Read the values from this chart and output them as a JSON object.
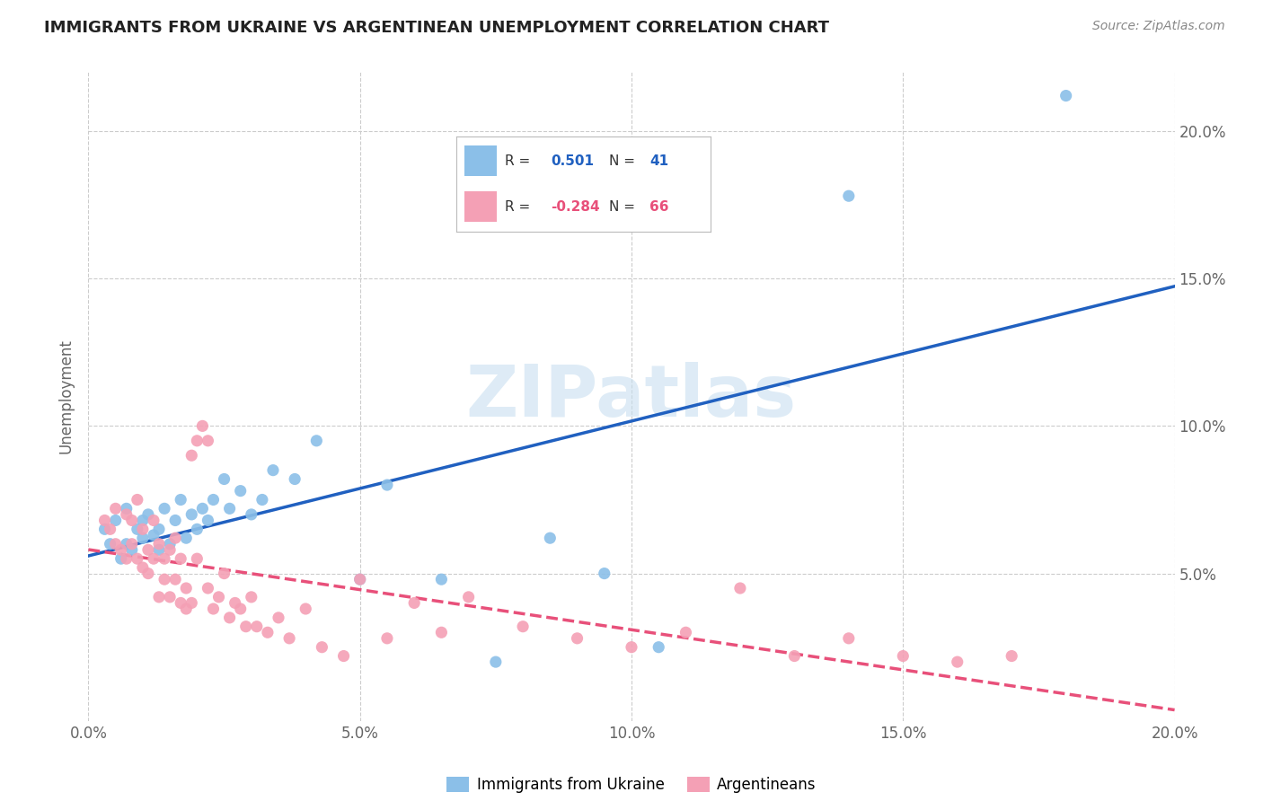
{
  "title": "IMMIGRANTS FROM UKRAINE VS ARGENTINEAN UNEMPLOYMENT CORRELATION CHART",
  "source": "Source: ZipAtlas.com",
  "ylabel": "Unemployment",
  "xlim": [
    0.0,
    0.2
  ],
  "ylim": [
    0.0,
    0.22
  ],
  "yticks": [
    0.05,
    0.1,
    0.15,
    0.2
  ],
  "xticks": [
    0.0,
    0.05,
    0.1,
    0.15,
    0.2
  ],
  "xtick_labels": [
    "0.0%",
    "5.0%",
    "10.0%",
    "15.0%",
    "20.0%"
  ],
  "ytick_labels_right": [
    "5.0%",
    "10.0%",
    "15.0%",
    "20.0%"
  ],
  "ukraine_color": "#8bbfe8",
  "argentina_color": "#f4a0b5",
  "ukraine_line_color": "#2060c0",
  "argentina_line_color": "#e8507a",
  "watermark": "ZIPatlas",
  "ukraine_scatter_x": [
    0.003,
    0.004,
    0.005,
    0.006,
    0.007,
    0.007,
    0.008,
    0.009,
    0.01,
    0.01,
    0.011,
    0.012,
    0.013,
    0.013,
    0.014,
    0.015,
    0.016,
    0.017,
    0.018,
    0.019,
    0.02,
    0.021,
    0.022,
    0.023,
    0.025,
    0.026,
    0.028,
    0.03,
    0.032,
    0.034,
    0.038,
    0.042,
    0.05,
    0.055,
    0.065,
    0.075,
    0.085,
    0.095,
    0.105,
    0.14,
    0.18
  ],
  "ukraine_scatter_y": [
    0.065,
    0.06,
    0.068,
    0.055,
    0.06,
    0.072,
    0.058,
    0.065,
    0.062,
    0.068,
    0.07,
    0.063,
    0.065,
    0.058,
    0.072,
    0.06,
    0.068,
    0.075,
    0.062,
    0.07,
    0.065,
    0.072,
    0.068,
    0.075,
    0.082,
    0.072,
    0.078,
    0.07,
    0.075,
    0.085,
    0.082,
    0.095,
    0.048,
    0.08,
    0.048,
    0.02,
    0.062,
    0.05,
    0.025,
    0.178,
    0.212
  ],
  "argentina_scatter_x": [
    0.003,
    0.004,
    0.005,
    0.005,
    0.006,
    0.007,
    0.007,
    0.008,
    0.008,
    0.009,
    0.009,
    0.01,
    0.01,
    0.011,
    0.011,
    0.012,
    0.012,
    0.013,
    0.013,
    0.014,
    0.014,
    0.015,
    0.015,
    0.016,
    0.016,
    0.017,
    0.017,
    0.018,
    0.018,
    0.019,
    0.019,
    0.02,
    0.02,
    0.021,
    0.022,
    0.022,
    0.023,
    0.024,
    0.025,
    0.026,
    0.027,
    0.028,
    0.029,
    0.03,
    0.031,
    0.033,
    0.035,
    0.037,
    0.04,
    0.043,
    0.047,
    0.05,
    0.055,
    0.06,
    0.065,
    0.07,
    0.08,
    0.09,
    0.1,
    0.11,
    0.12,
    0.13,
    0.14,
    0.15,
    0.16,
    0.17
  ],
  "argentina_scatter_y": [
    0.068,
    0.065,
    0.06,
    0.072,
    0.058,
    0.055,
    0.07,
    0.06,
    0.068,
    0.055,
    0.075,
    0.052,
    0.065,
    0.058,
    0.05,
    0.055,
    0.068,
    0.042,
    0.06,
    0.055,
    0.048,
    0.058,
    0.042,
    0.048,
    0.062,
    0.04,
    0.055,
    0.038,
    0.045,
    0.04,
    0.09,
    0.095,
    0.055,
    0.1,
    0.045,
    0.095,
    0.038,
    0.042,
    0.05,
    0.035,
    0.04,
    0.038,
    0.032,
    0.042,
    0.032,
    0.03,
    0.035,
    0.028,
    0.038,
    0.025,
    0.022,
    0.048,
    0.028,
    0.04,
    0.03,
    0.042,
    0.032,
    0.028,
    0.025,
    0.03,
    0.045,
    0.022,
    0.028,
    0.022,
    0.02,
    0.022
  ]
}
